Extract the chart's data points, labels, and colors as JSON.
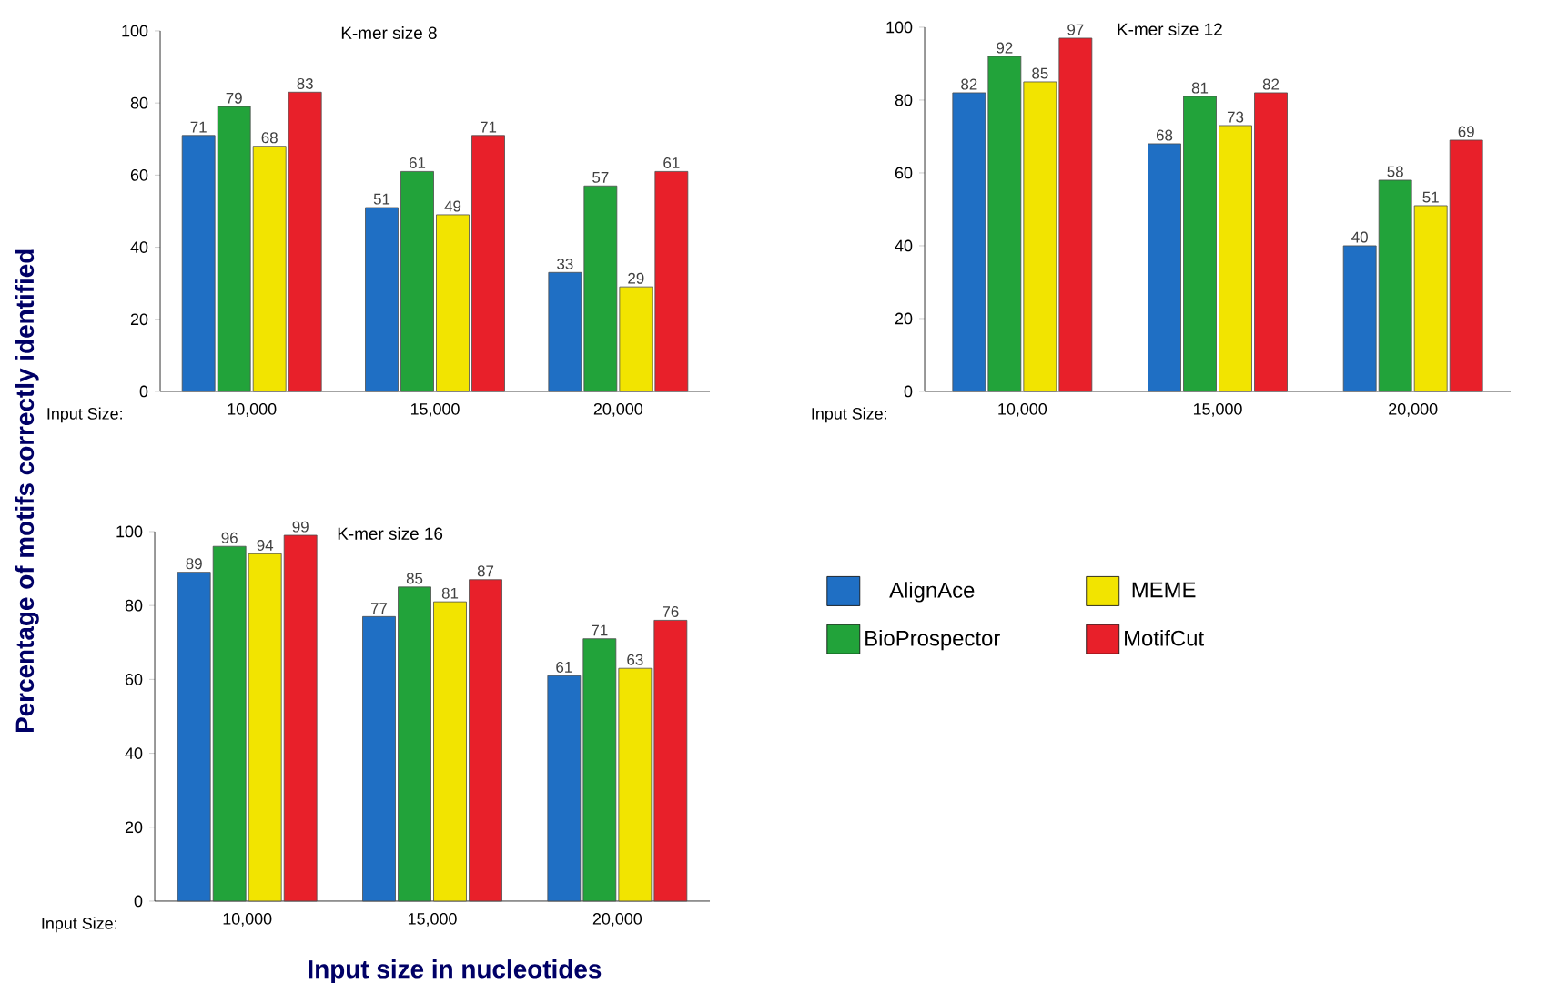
{
  "chart_data": [
    {
      "type": "bar",
      "title": "K-mer size 8",
      "categories": [
        "10,000",
        "15,000",
        "20,000"
      ],
      "series": [
        {
          "color": "#1f6fc4",
          "values": [
            71,
            51,
            33
          ]
        },
        {
          "color": "#22a33a",
          "values": [
            79,
            61,
            57
          ]
        },
        {
          "color": "#f2e400",
          "values": [
            68,
            49,
            29
          ]
        },
        {
          "color": "#e8202a",
          "values": [
            83,
            71,
            61
          ]
        }
      ],
      "ylim": [
        0,
        100
      ],
      "yticks": [
        0,
        20,
        40,
        60,
        80,
        100
      ],
      "data_labels": true,
      "annotations": [
        "Input Size:"
      ]
    },
    {
      "type": "bar",
      "title": "K-mer size 12",
      "categories": [
        "10,000",
        "15,000",
        "20,000"
      ],
      "series": [
        {
          "color": "#1f6fc4",
          "values": [
            82,
            68,
            40
          ]
        },
        {
          "color": "#22a33a",
          "values": [
            92,
            81,
            58
          ]
        },
        {
          "color": "#f2e400",
          "values": [
            85,
            73,
            51
          ]
        },
        {
          "color": "#e8202a",
          "values": [
            97,
            82,
            69
          ]
        }
      ],
      "ylim": [
        0,
        100
      ],
      "yticks": [
        0,
        20,
        40,
        60,
        80,
        100
      ],
      "data_labels": true,
      "annotations": [
        "Input Size:"
      ]
    },
    {
      "type": "bar",
      "title": "K-mer size 16",
      "categories": [
        "10,000",
        "15,000",
        "20,000"
      ],
      "series": [
        {
          "name": "AlignAce",
          "color": "#1f6fc4",
          "values": [
            89,
            77,
            61
          ]
        },
        {
          "name": "BioProspector",
          "color": "#22a33a",
          "values": [
            96,
            85,
            71
          ]
        },
        {
          "name": "MEME",
          "color": "#f2e400",
          "values": [
            94,
            81,
            63
          ]
        },
        {
          "name": "MotifCut",
          "color": "#e8202a",
          "values": [
            99,
            87,
            76
          ]
        }
      ],
      "ylim": [
        0,
        100
      ],
      "yticks": [
        0,
        20,
        40,
        60,
        80,
        100
      ],
      "data_labels": true,
      "legend": "right",
      "annotations": [
        "Input Size:"
      ],
      "xlabel": "Input size in nucleotides",
      "ylabel": "Percentage of motifs correctly identified"
    }
  ]
}
